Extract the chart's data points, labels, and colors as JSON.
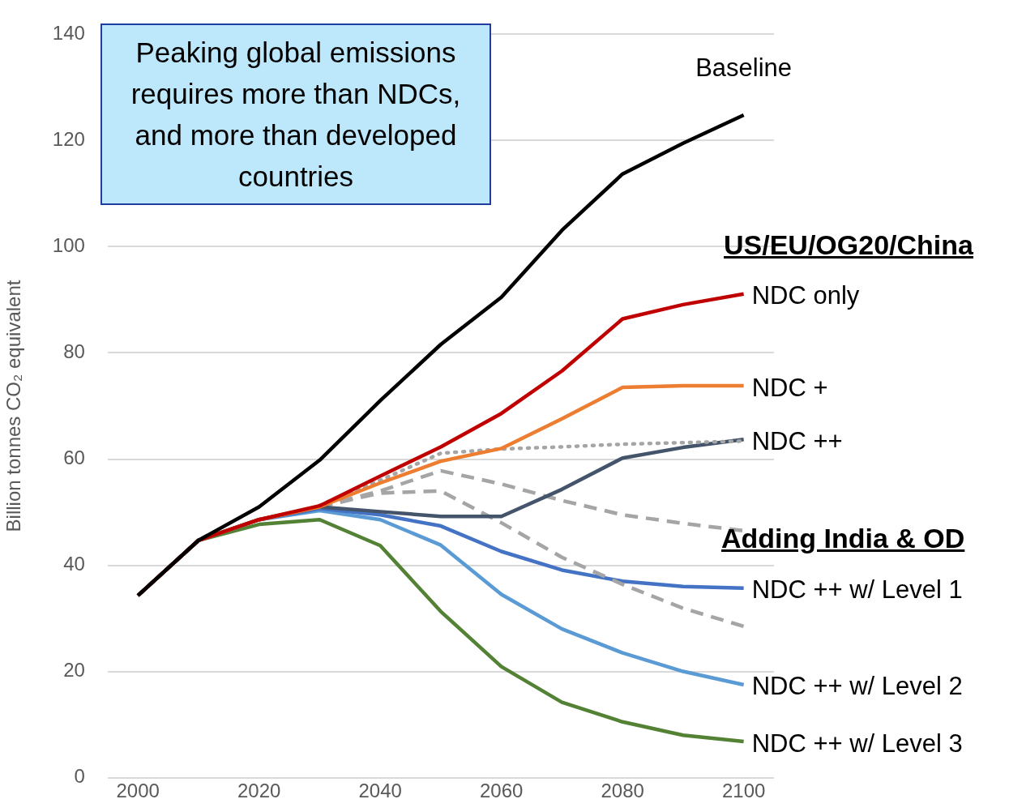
{
  "chart_data": {
    "type": "line",
    "ylabel": "Billion tonnes CO₂ equivalent",
    "x": [
      2000,
      2010,
      2020,
      2030,
      2040,
      2050,
      2060,
      2070,
      2080,
      2090,
      2100
    ],
    "xlim": [
      1995,
      2105
    ],
    "xticks": [
      2000,
      2020,
      2040,
      2060,
      2080,
      2100
    ],
    "ylim": [
      0,
      140
    ],
    "yticks": [
      0,
      20,
      40,
      60,
      80,
      100,
      120,
      140
    ],
    "grid": "y",
    "legend": false,
    "marker": "none",
    "line_style": "solid",
    "annotations": [
      "Peaking global emissions requires more than NDCs, and more than developed countries",
      "US/EU/OG20/China",
      "Adding India & OD"
    ],
    "series": [
      {
        "name": "Baseline",
        "color": "#000000",
        "values": [
          34.3,
          44.7,
          51.0,
          59.8,
          71.0,
          81.6,
          90.5,
          103.1,
          113.7,
          119.5,
          124.8
        ]
      },
      {
        "name": "NDC only",
        "color": "#c00000",
        "values": [
          34.3,
          44.7,
          48.6,
          51.2,
          56.8,
          62.3,
          68.6,
          76.6,
          86.4,
          89.1,
          91.1
        ]
      },
      {
        "name": "NDC +",
        "color": "#ed7d31",
        "values": [
          34.3,
          44.7,
          48.6,
          51.0,
          55.5,
          59.6,
          62.0,
          67.6,
          73.5,
          73.8,
          73.8
        ]
      },
      {
        "color": "#a5a5a5",
        "line_style": "dotted",
        "values": [
          null,
          null,
          null,
          51.3,
          56.0,
          61.1,
          61.9,
          62.3,
          62.8,
          63.1,
          63.4
        ]
      },
      {
        "name": "NDC ++",
        "color": "#44546a",
        "values": [
          34.3,
          44.7,
          48.6,
          51.0,
          50.1,
          49.2,
          49.2,
          54.3,
          60.2,
          62.2,
          63.7
        ]
      },
      {
        "color": "#a5a5a5",
        "line_style": "dashed",
        "values": [
          null,
          null,
          null,
          51.0,
          54.0,
          57.8,
          55.3,
          52.2,
          49.5,
          47.9,
          46.5
        ]
      },
      {
        "color": "#a5a5a5",
        "line_style": "dashed",
        "values": [
          null,
          null,
          null,
          51.0,
          53.6,
          54.0,
          48.0,
          41.5,
          36.4,
          31.9,
          28.5
        ]
      },
      {
        "name": "NDC ++ w/ Level 1",
        "color": "#4472c4",
        "values": [
          34.3,
          44.7,
          48.6,
          50.7,
          49.5,
          47.4,
          42.6,
          39.1,
          37.0,
          36.0,
          35.7
        ]
      },
      {
        "name": "NDC ++ w/ Level 2",
        "color": "#5b9bd5",
        "values": [
          34.3,
          44.7,
          48.6,
          50.3,
          48.6,
          43.8,
          34.5,
          28.0,
          23.5,
          20.0,
          17.5
        ]
      },
      {
        "name": "NDC ++ w/ Level 3",
        "color": "#548235",
        "values": [
          34.3,
          44.7,
          47.7,
          48.6,
          43.7,
          31.3,
          20.9,
          14.2,
          10.5,
          8.0,
          6.8
        ]
      }
    ]
  }
}
